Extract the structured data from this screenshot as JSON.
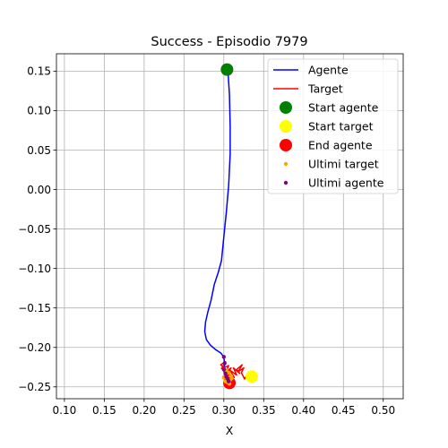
{
  "chart_data": {
    "type": "line",
    "title": "Success - Episodio 7979",
    "xlabel": "X",
    "ylabel": "Y",
    "xlim": [
      0.09,
      0.525
    ],
    "ylim": [
      -0.265,
      0.172
    ],
    "xticks": [
      0.1,
      0.15,
      0.2,
      0.25,
      0.3,
      0.35,
      0.4,
      0.45,
      0.5
    ],
    "xtick_labels": [
      "0.10",
      "0.15",
      "0.20",
      "0.25",
      "0.30",
      "0.35",
      "0.40",
      "0.45",
      "0.50"
    ],
    "yticks": [
      0.15,
      0.1,
      0.05,
      0.0,
      -0.05,
      -0.1,
      -0.15,
      -0.2,
      -0.25
    ],
    "ytick_labels": [
      "0.15",
      "0.10",
      "0.05",
      "0.00",
      "−0.05",
      "−0.10",
      "−0.15",
      "−0.20",
      "−0.25"
    ],
    "grid": true,
    "legend_position": "top-right",
    "series": [
      {
        "name": "Agente",
        "kind": "line",
        "color": "#0000ff",
        "x": [
          0.305,
          0.307,
          0.308,
          0.308,
          0.306,
          0.303,
          0.3,
          0.297,
          0.293,
          0.288,
          0.284,
          0.28,
          0.277,
          0.276,
          0.278,
          0.283,
          0.29,
          0.296,
          0.3,
          0.301,
          0.3,
          0.302,
          0.305,
          0.307
        ],
        "y": [
          0.152,
          0.12,
          0.08,
          0.045,
          0.005,
          -0.03,
          -0.06,
          -0.09,
          -0.105,
          -0.12,
          -0.14,
          -0.155,
          -0.168,
          -0.18,
          -0.19,
          -0.197,
          -0.203,
          -0.207,
          -0.212,
          -0.222,
          -0.23,
          -0.236,
          -0.241,
          -0.245
        ]
      },
      {
        "name": "Target",
        "kind": "line",
        "color": "#ff0000",
        "x": [
          0.335,
          0.33,
          0.326,
          0.322,
          0.325,
          0.318,
          0.323,
          0.316,
          0.32,
          0.312,
          0.316,
          0.308,
          0.313,
          0.305,
          0.309,
          0.302,
          0.306,
          0.297,
          0.302,
          0.296,
          0.305,
          0.3,
          0.307,
          0.303,
          0.309,
          0.307
        ],
        "y": [
          -0.238,
          -0.233,
          -0.24,
          -0.232,
          -0.226,
          -0.231,
          -0.222,
          -0.228,
          -0.233,
          -0.226,
          -0.235,
          -0.229,
          -0.238,
          -0.234,
          -0.226,
          -0.232,
          -0.223,
          -0.227,
          -0.218,
          -0.222,
          -0.23,
          -0.237,
          -0.232,
          -0.241,
          -0.236,
          -0.244
        ]
      },
      {
        "name": "Start agente",
        "kind": "scatter",
        "color": "#008000",
        "size": 7,
        "x": [
          0.304
        ],
        "y": [
          0.152
        ]
      },
      {
        "name": "Start target",
        "kind": "scatter",
        "color": "#ffff00",
        "size": 7,
        "x": [
          0.335
        ],
        "y": [
          -0.237
        ]
      },
      {
        "name": "End agente",
        "kind": "scatter",
        "color": "#ff0000",
        "size": 7,
        "x": [
          0.307
        ],
        "y": [
          -0.245
        ]
      },
      {
        "name": "Ultimi target",
        "kind": "scatter",
        "color": "#ffa500",
        "size": 2.2,
        "x": [
          0.309,
          0.305,
          0.302,
          0.306,
          0.3,
          0.304,
          0.308,
          0.303,
          0.307,
          0.31
        ],
        "y": [
          -0.236,
          -0.24,
          -0.243,
          -0.232,
          -0.238,
          -0.244,
          -0.241,
          -0.229,
          -0.246,
          -0.239
        ]
      },
      {
        "name": "Ultimi agente",
        "kind": "scatter",
        "color": "#800080",
        "size": 2.2,
        "x": [
          0.3,
          0.301,
          0.3,
          0.302,
          0.303,
          0.305,
          0.306
        ],
        "y": [
          -0.212,
          -0.22,
          -0.228,
          -0.233,
          -0.237,
          -0.24,
          -0.243
        ]
      }
    ]
  }
}
